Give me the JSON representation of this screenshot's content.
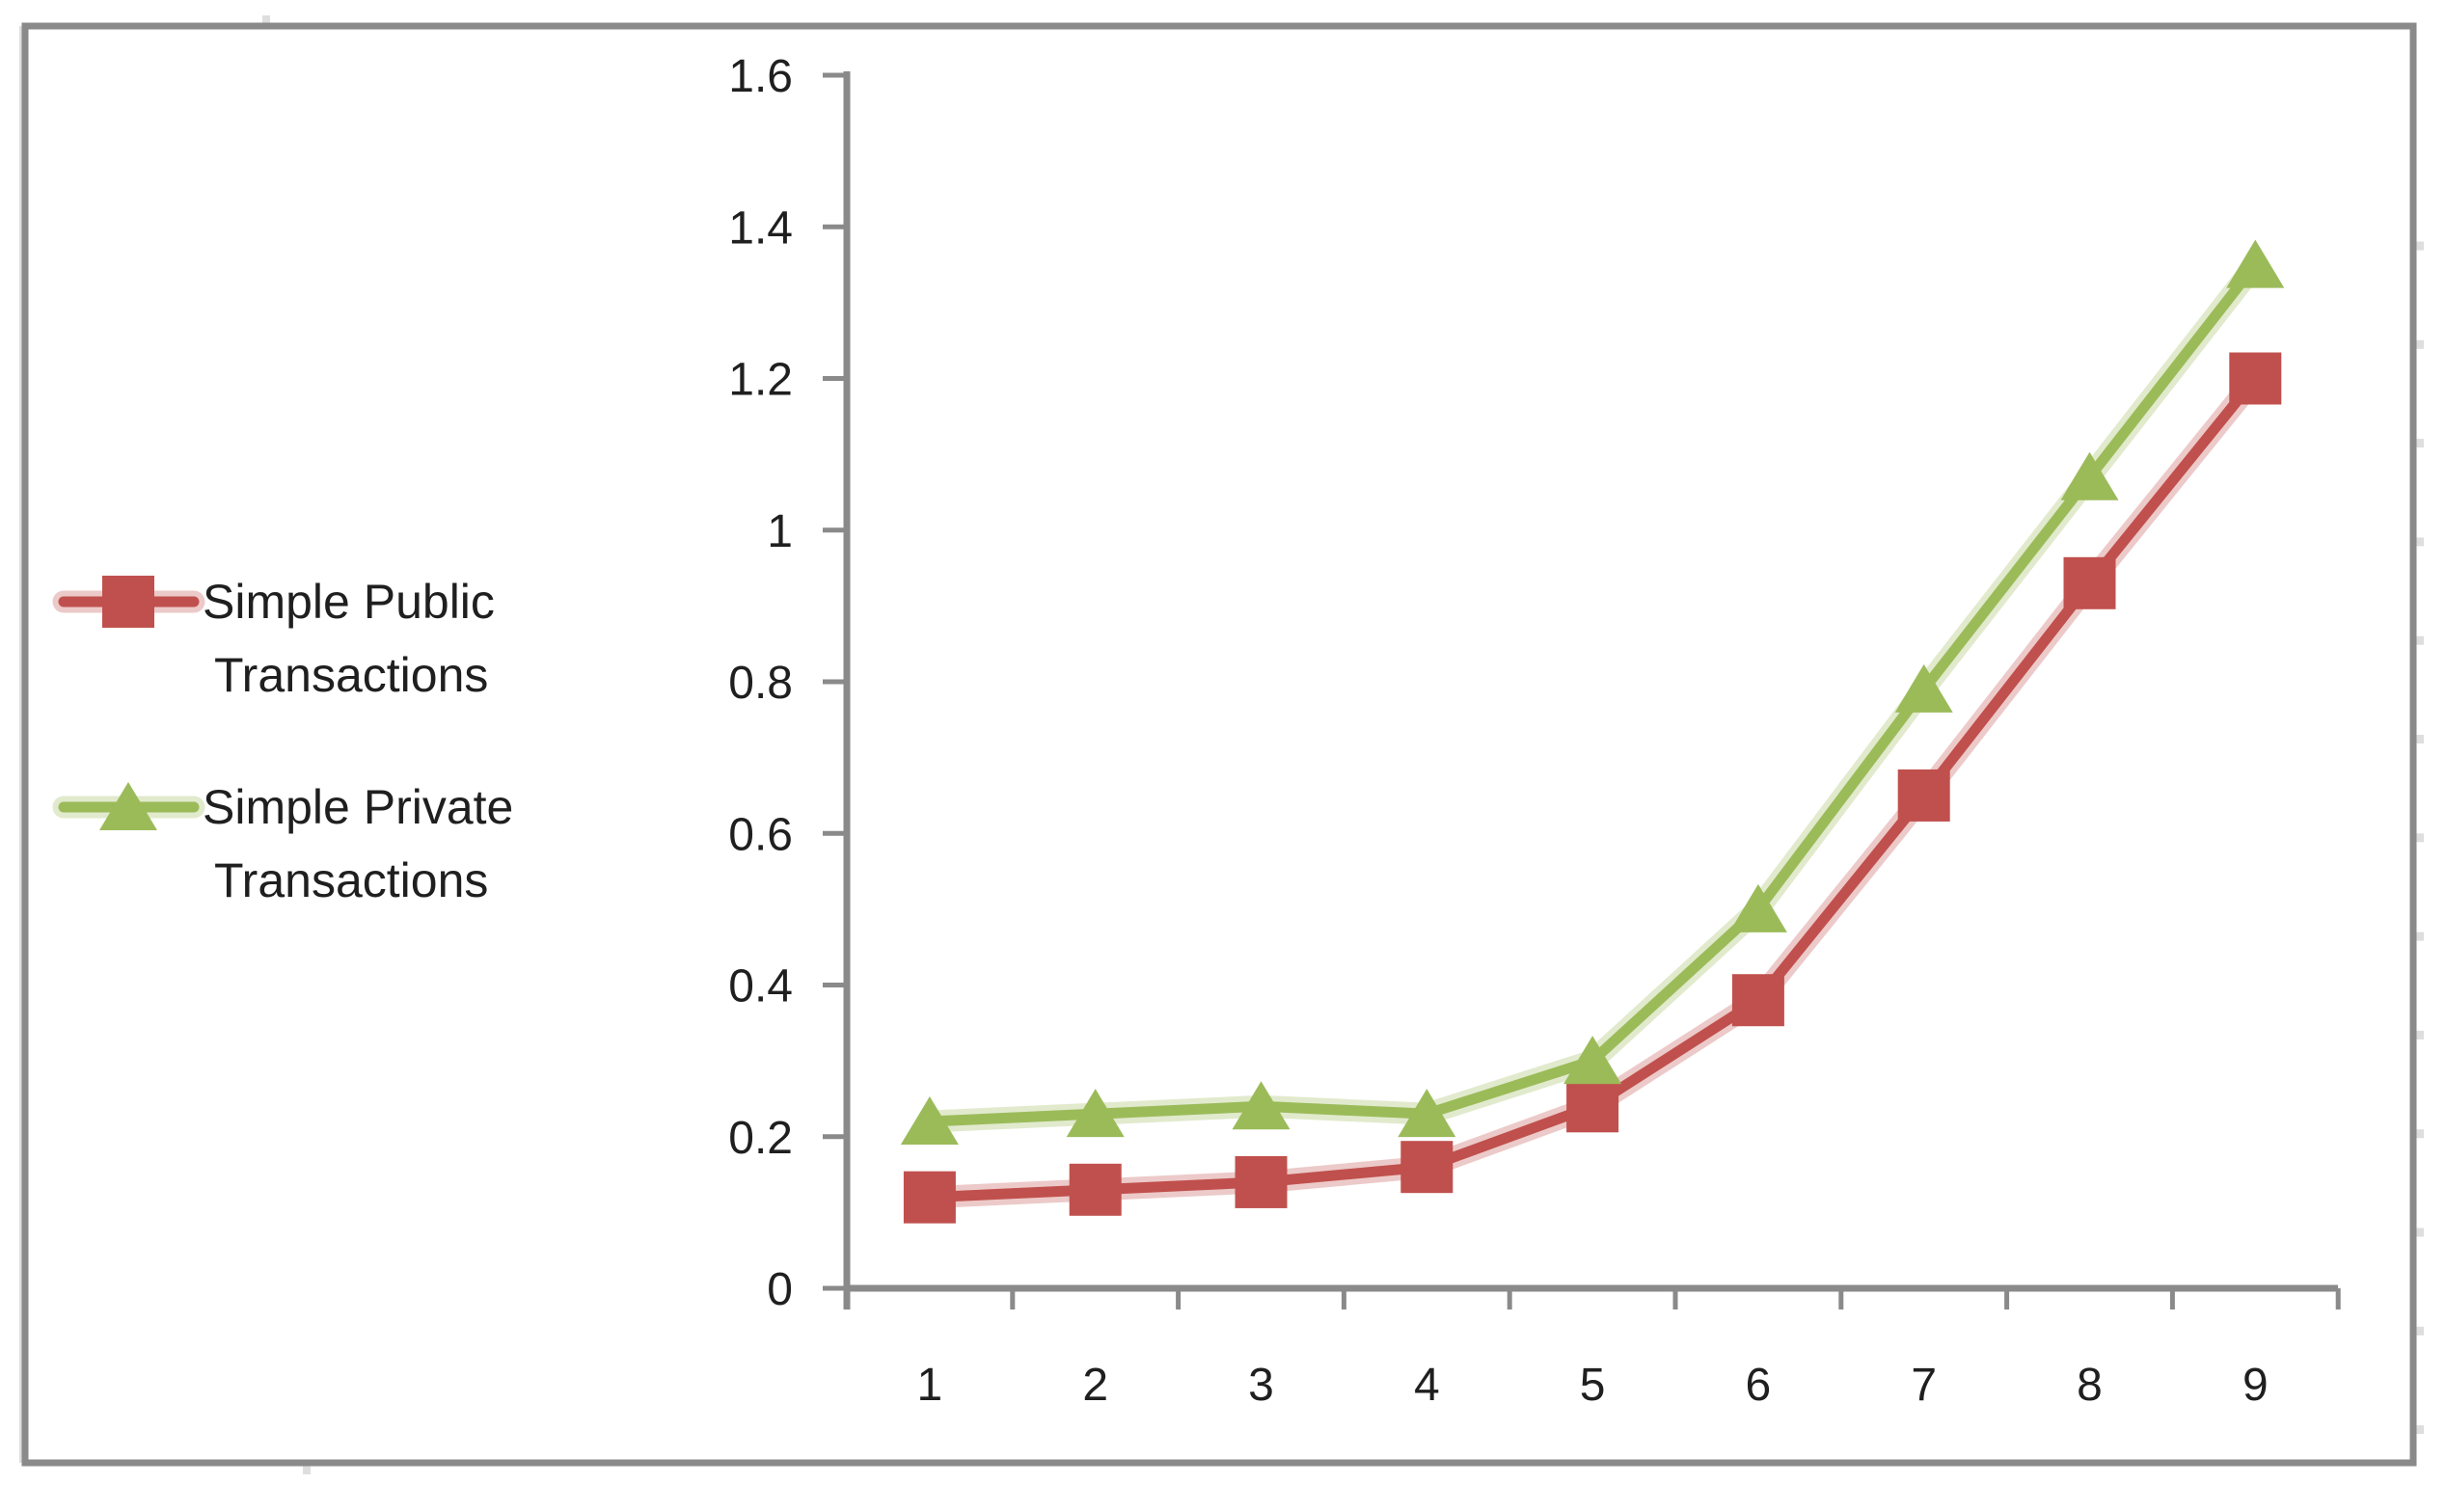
{
  "chart_data": {
    "type": "line",
    "categories": [
      "1",
      "2",
      "3",
      "4",
      "5",
      "6",
      "7",
      "8",
      "9"
    ],
    "series": [
      {
        "name": "Simple Public Transactions",
        "label_lines": [
          "Simple Public",
          "Transactions"
        ],
        "marker": "square",
        "color": "#C0504D",
        "values": [
          0.12,
          0.13,
          0.14,
          0.16,
          0.24,
          0.38,
          0.65,
          0.93,
          1.2
        ]
      },
      {
        "name": "Simple Private Transactions",
        "label_lines": [
          "Simple Private",
          "Transactions"
        ],
        "marker": "triangle",
        "color": "#9BBB59",
        "values": [
          0.22,
          0.23,
          0.24,
          0.23,
          0.3,
          0.5,
          0.79,
          1.07,
          1.35
        ]
      }
    ],
    "y_axis": {
      "min": 0,
      "max": 1.6,
      "step": 0.2,
      "tick_labels": [
        "0",
        "0.2",
        "0.4",
        "0.6",
        "0.8",
        "1",
        "1.2",
        "1.4",
        "1.6"
      ]
    },
    "x_axis": {
      "tick_labels": [
        "1",
        "2",
        "3",
        "4",
        "5",
        "6",
        "7",
        "8",
        "9"
      ]
    },
    "legend_position": "left",
    "grid": false,
    "colors": {
      "axis": "#8A8A8A",
      "border": "#8A8A8A",
      "text": "#1F1F1F",
      "background": "#FFFFFF",
      "gridline_artifact": "#DEDEDE"
    }
  }
}
